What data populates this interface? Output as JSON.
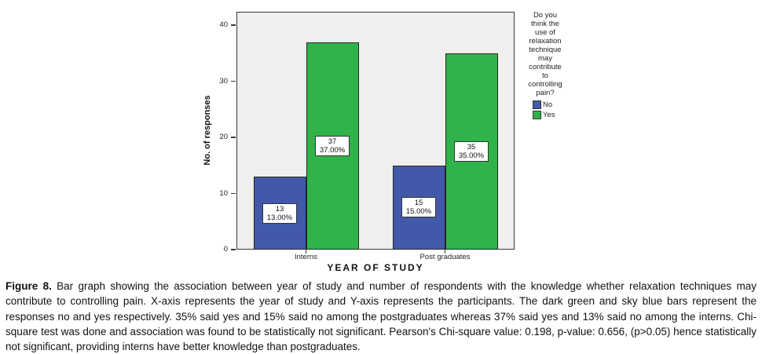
{
  "chart_data": {
    "type": "bar",
    "title": "",
    "categories": [
      "Interns",
      "Post graduates"
    ],
    "series": [
      {
        "name": "No",
        "color": "#4159a8",
        "values": [
          13,
          15
        ],
        "value_labels": [
          [
            "13",
            "13.00%"
          ],
          [
            "15",
            "15.00%"
          ]
        ]
      },
      {
        "name": "Yes",
        "color": "#2eb44a",
        "values": [
          37,
          35
        ],
        "value_labels": [
          [
            "37",
            "37.00%"
          ],
          [
            "35",
            "35.00%"
          ]
        ]
      }
    ],
    "xlabel": "YEAR OF STUDY",
    "ylabel": "No. of responses",
    "ylim": [
      0,
      42.4
    ],
    "yticks": [
      0,
      10,
      20,
      30,
      40
    ],
    "grid": false,
    "plot_background": "#f0efee",
    "legend": {
      "position": "right",
      "title": "Do you think the use of relaxation technique may contribute to controlling pain?",
      "title_lines": [
        "Do you",
        "think the",
        "use of",
        "relaxation",
        "technique",
        "may",
        "contribute",
        "to",
        "controlling",
        "pain?"
      ],
      "entries": [
        {
          "label": "No",
          "color": "#4159a8"
        },
        {
          "label": "Yes",
          "color": "#2eb44a"
        }
      ]
    }
  },
  "caption": {
    "label": "Figure 8.",
    "text": " Bar graph showing the association between year of study and number of respondents with the knowledge whether relaxation techniques may contribute to controlling pain. X-axis represents the year of study and Y-axis represents the participants. The dark green and sky blue bars represent the responses no and yes respectively. 35% said yes and 15% said no among the postgraduates whereas 37% said yes and 13% said no among the interns. Chi-square test was done and association was found to be statistically not significant. Pearson's Chi-square value: 0.198, p-value: 0.656, (p>0.05) hence statistically not significant, providing interns have better knowledge than postgraduates."
  }
}
